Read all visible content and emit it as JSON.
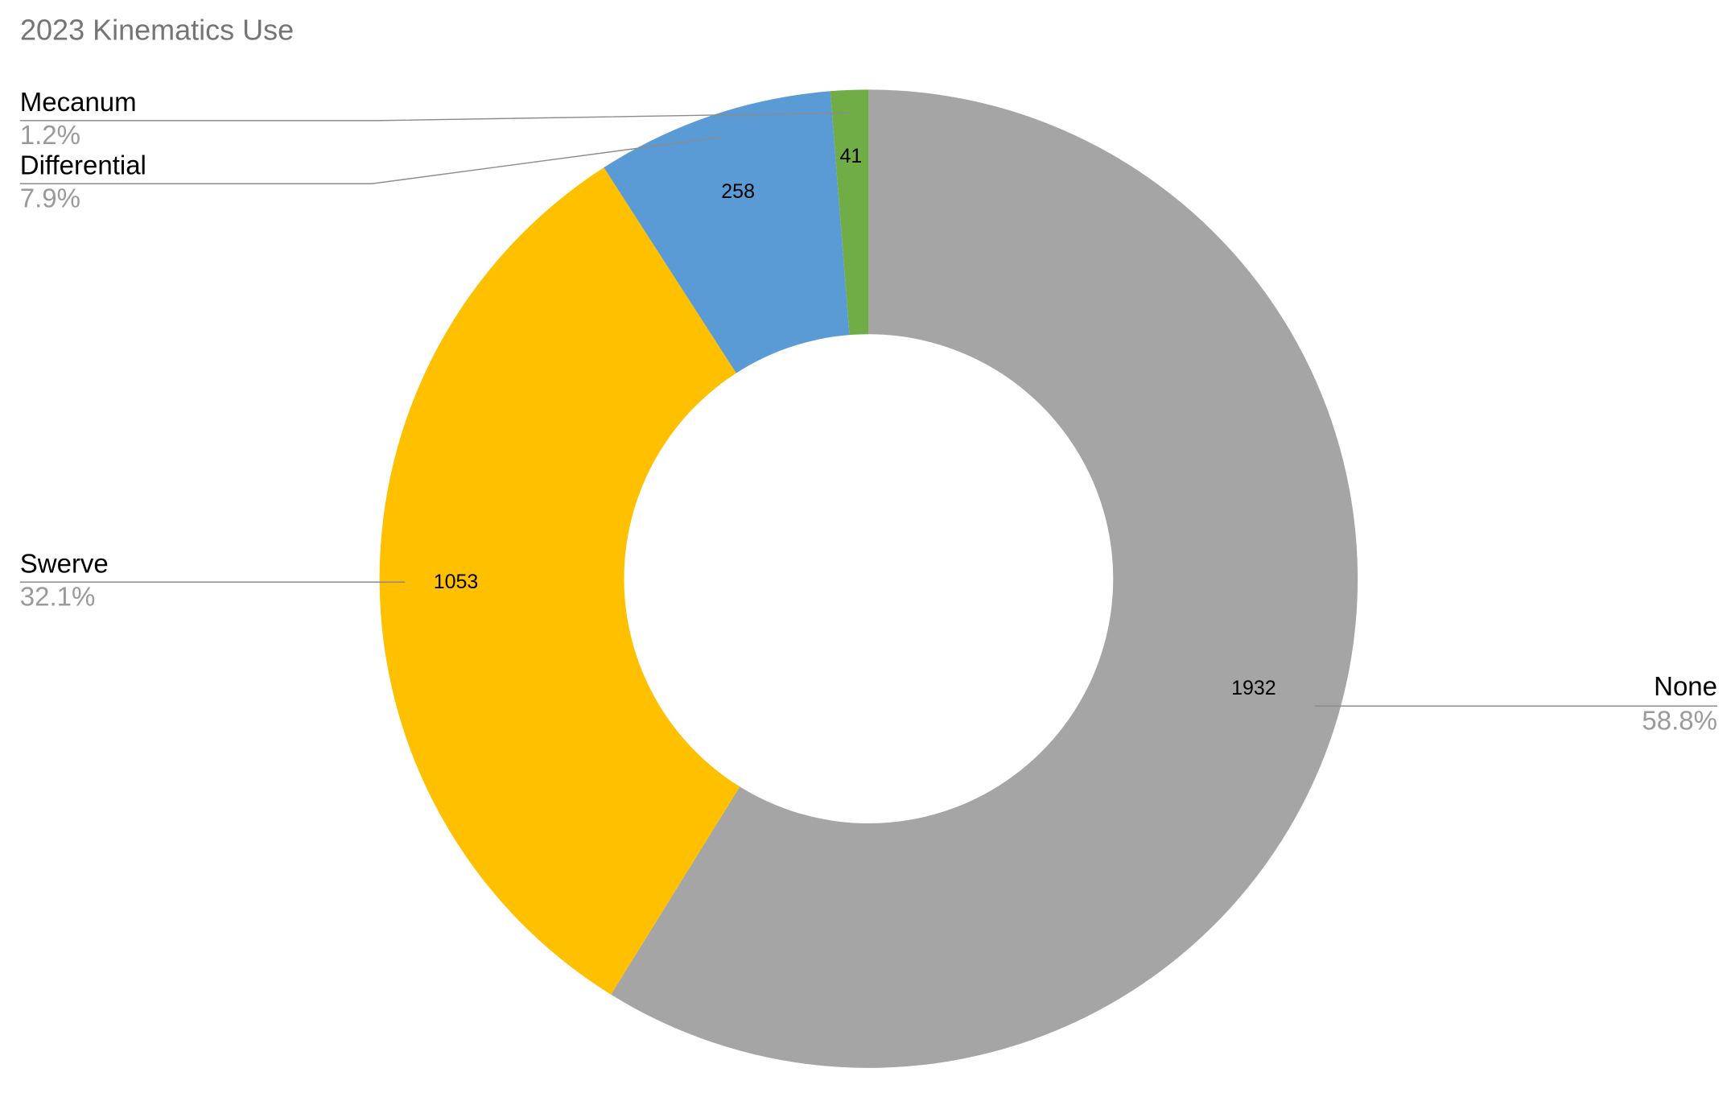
{
  "chart_data": {
    "type": "donut",
    "title": "2023 Kinematics Use",
    "categories": [
      "None",
      "Swerve",
      "Differential",
      "Mecanum"
    ],
    "values": [
      1932,
      1053,
      258,
      41
    ],
    "percent_labels": [
      "58.8%",
      "32.1%",
      "7.9%",
      "1.2%"
    ],
    "colors": [
      "#a5a5a5",
      "#ffc000",
      "#5b9bd5",
      "#70ad47"
    ]
  }
}
